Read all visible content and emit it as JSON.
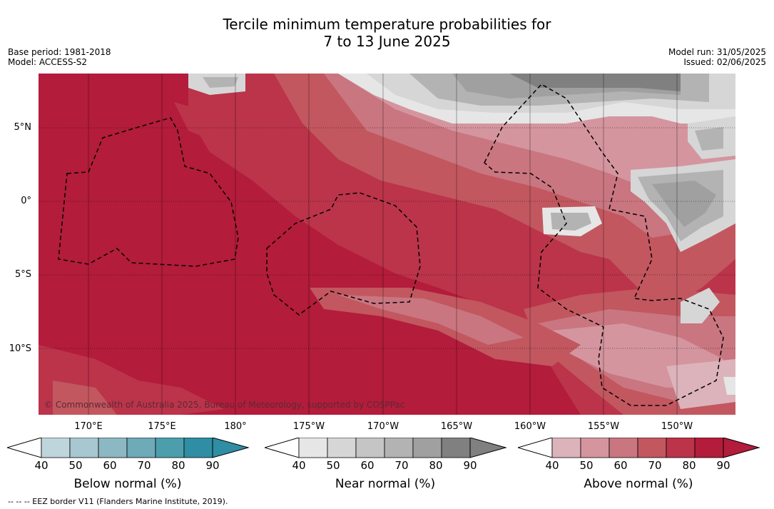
{
  "title_line1": "Tercile minimum temperature probabilities for",
  "title_line2": "7 to 13 June 2025",
  "meta_left": {
    "base_period": "Base period: 1981-2018",
    "model": "Model: ACCESS-S2"
  },
  "meta_right": {
    "model_run": "Model run: 31/05/2025",
    "issued": "Issued: 02/06/2025"
  },
  "lat_labels": [
    "5°N",
    "0°",
    "5°S",
    "10°S"
  ],
  "lon_labels": [
    "170°E",
    "175°E",
    "180°",
    "175°W",
    "170°W",
    "165°W",
    "160°W",
    "155°W",
    "150°W"
  ],
  "copyright": "© Commonwealth of Australia 2025, Bureau of Meteorology, supported by COSPPac",
  "colorbars": [
    {
      "title": "Below normal (%)",
      "ticks": [
        "40",
        "50",
        "60",
        "70",
        "80",
        "90"
      ],
      "colors": [
        "#bfd5dc",
        "#a7c8d0",
        "#8cb8c3",
        "#6eaab8",
        "#4d9ead",
        "#2f8ea3"
      ]
    },
    {
      "title": "Near normal (%)",
      "ticks": [
        "40",
        "50",
        "60",
        "70",
        "80",
        "90"
      ],
      "colors": [
        "#e6e6e6",
        "#d6d6d6",
        "#c5c5c5",
        "#b3b3b3",
        "#a0a0a0",
        "#808080"
      ]
    },
    {
      "title": "Above normal (%)",
      "ticks": [
        "40",
        "50",
        "60",
        "70",
        "80",
        "90"
      ],
      "colors": [
        "#dcb3ba",
        "#d4959f",
        "#c97680",
        "#c2575f",
        "#bb344a",
        "#b31c3b"
      ]
    }
  ],
  "eez_note": "--  --  -- EEZ border V11 (Flanders Marine Institute, 2019)."
}
